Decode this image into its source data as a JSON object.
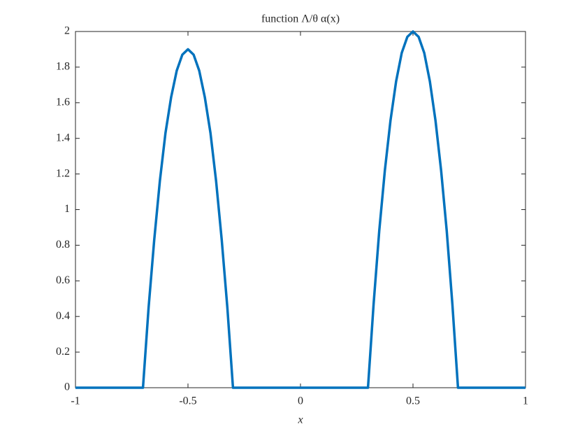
{
  "chart_data": {
    "type": "line",
    "title": "function Λ/θ α(x)",
    "x_label": "x",
    "x": [
      -1,
      -0.7,
      -0.675,
      -0.65,
      -0.625,
      -0.6,
      -0.575,
      -0.55,
      -0.525,
      -0.5,
      -0.475,
      -0.45,
      -0.425,
      -0.4,
      -0.375,
      -0.35,
      -0.325,
      -0.3,
      0.3,
      0.325,
      0.35,
      0.375,
      0.4,
      0.425,
      0.45,
      0.475,
      0.5,
      0.525,
      0.55,
      0.575,
      0.6,
      0.625,
      0.65,
      0.675,
      0.7,
      1
    ],
    "series": [
      {
        "color": "#0072bd",
        "values": [
          0,
          0,
          0.45,
          0.83,
          1.16,
          1.43,
          1.63,
          1.78,
          1.87,
          1.9,
          1.87,
          1.78,
          1.63,
          1.43,
          1.16,
          0.83,
          0.45,
          0,
          0,
          0.47,
          0.88,
          1.22,
          1.5,
          1.72,
          1.88,
          1.97,
          2,
          1.97,
          1.88,
          1.72,
          1.5,
          1.22,
          0.88,
          0.47,
          0,
          0
        ]
      }
    ],
    "xlim": [
      -1,
      1
    ],
    "xticks": [
      -1,
      -0.5,
      0,
      0.5,
      1
    ],
    "ylim": [
      0,
      2
    ],
    "yticks": [
      0,
      0.2,
      0.4,
      0.6,
      0.8,
      1,
      1.2,
      1.4,
      1.6,
      1.8,
      2
    ],
    "grid": false
  }
}
